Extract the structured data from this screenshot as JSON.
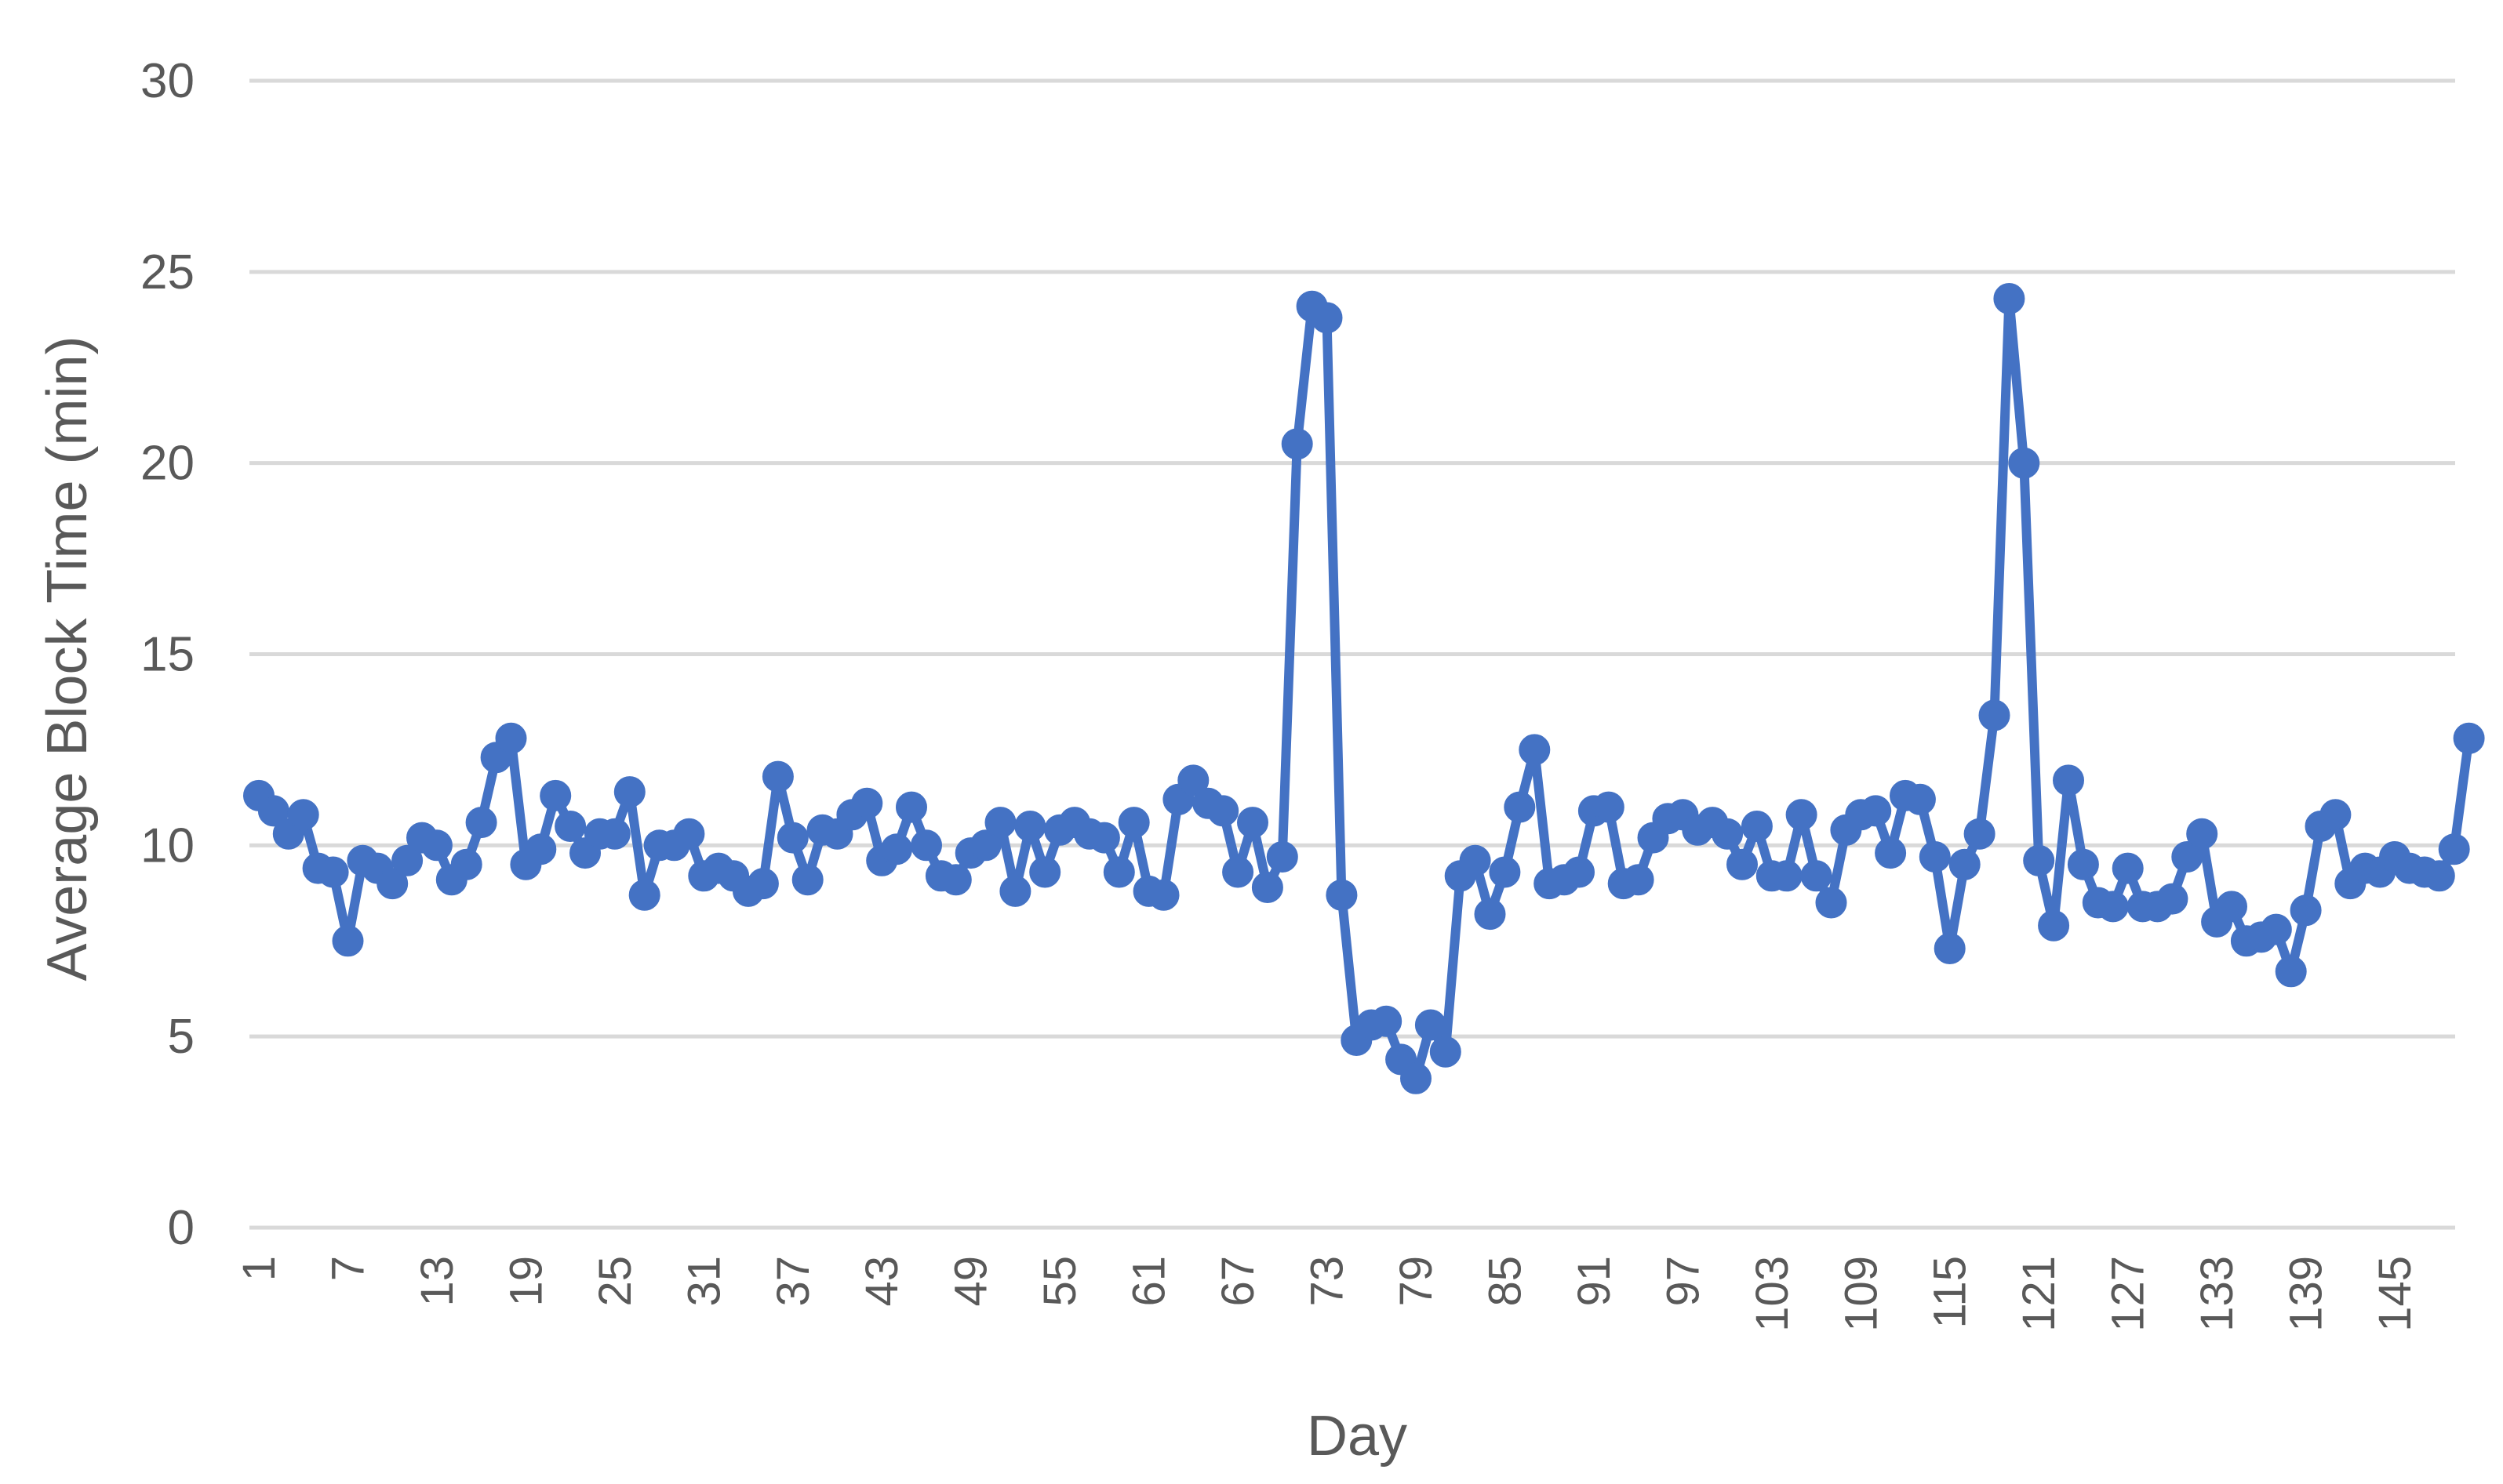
{
  "chart_data": {
    "type": "line",
    "title": "",
    "xlabel": "Day",
    "ylabel": "Average Block Time (min)",
    "ylim": [
      0,
      30
    ],
    "yticks": [
      0,
      5,
      10,
      15,
      20,
      25,
      30
    ],
    "xticks": [
      1,
      7,
      13,
      19,
      25,
      31,
      37,
      43,
      49,
      55,
      61,
      67,
      73,
      79,
      85,
      91,
      97,
      103,
      109,
      115,
      121,
      127,
      133,
      139,
      145
    ],
    "grid": true,
    "legend": "none",
    "marker": "circle",
    "series_color": "#4472c4",
    "series": [
      {
        "values": [
          11.3,
          10.9,
          10.3,
          10.8,
          9.4,
          9.3,
          7.5,
          9.6,
          9.4,
          9.0,
          9.6,
          10.2,
          10.0,
          9.1,
          9.5,
          10.6,
          12.3,
          12.8,
          9.5,
          9.9,
          11.3,
          10.5,
          9.8,
          10.3,
          10.3,
          11.4,
          8.7,
          10.0,
          10.0,
          10.3,
          9.2,
          9.4,
          9.2,
          8.8,
          9.0,
          11.8,
          10.2,
          9.1,
          10.4,
          10.3,
          10.8,
          11.1,
          9.6,
          9.9,
          11.0,
          10.0,
          9.2,
          9.1,
          9.8,
          10.0,
          10.6,
          8.8,
          10.5,
          9.3,
          10.4,
          10.6,
          10.3,
          10.2,
          9.3,
          10.6,
          8.8,
          8.7,
          11.2,
          11.7,
          11.1,
          10.9,
          9.3,
          10.6,
          8.9,
          9.7,
          20.5,
          24.1,
          23.8,
          8.7,
          4.9,
          5.3,
          5.4,
          4.4,
          3.9,
          5.3,
          4.6,
          9.2,
          9.6,
          8.2,
          9.3,
          11.0,
          12.5,
          9.0,
          9.1,
          9.3,
          10.9,
          11.0,
          9.0,
          9.1,
          10.2,
          10.7,
          10.8,
          10.4,
          10.6,
          10.3,
          9.5,
          10.5,
          9.2,
          9.2,
          10.8,
          9.2,
          8.5,
          10.4,
          10.8,
          10.9,
          9.8,
          11.3,
          11.2,
          9.7,
          7.3,
          9.5,
          10.3,
          13.4,
          24.3,
          20.0,
          9.6,
          7.9,
          11.7,
          9.5,
          8.5,
          8.4,
          9.4,
          8.4,
          8.4,
          8.6,
          9.7,
          10.3,
          8.0,
          8.4,
          7.5,
          7.6,
          7.8,
          6.7,
          8.3,
          10.5,
          10.8,
          9.0,
          9.4,
          9.3,
          9.7,
          9.4,
          9.3,
          9.2,
          9.9,
          12.8
        ]
      }
    ]
  }
}
